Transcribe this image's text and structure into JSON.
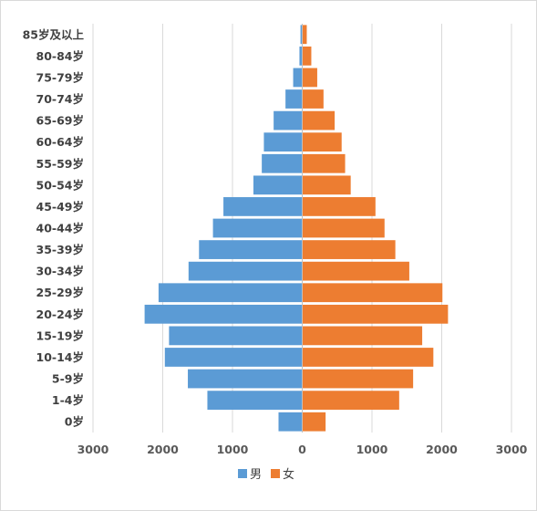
{
  "chart_data": {
    "type": "bar",
    "orientation": "horizontal",
    "subtype": "population-pyramid",
    "categories": [
      "85岁及以上",
      "80-84岁",
      "75-79岁",
      "70-74岁",
      "65-69岁",
      "60-64岁",
      "55-59岁",
      "50-54岁",
      "45-49岁",
      "40-44岁",
      "35-39岁",
      "30-34岁",
      "25-29岁",
      "20-24岁",
      "15-19岁",
      "10-14岁",
      "5-9岁",
      "1-4岁",
      "0岁"
    ],
    "series": [
      {
        "name": "男",
        "color": "#5b9bd5",
        "side": "left",
        "values": [
          25,
          40,
          130,
          240,
          410,
          550,
          580,
          700,
          1130,
          1280,
          1480,
          1630,
          2060,
          2260,
          1910,
          1970,
          1640,
          1360,
          340
        ]
      },
      {
        "name": "女",
        "color": "#ed7d31",
        "side": "right",
        "values": [
          65,
          130,
          215,
          305,
          465,
          565,
          615,
          695,
          1050,
          1180,
          1335,
          1535,
          2010,
          2090,
          1720,
          1880,
          1590,
          1390,
          335
        ]
      }
    ],
    "x_ticks": [
      {
        "value": -3000,
        "label": "3000"
      },
      {
        "value": -2000,
        "label": "2000"
      },
      {
        "value": -1000,
        "label": "1000"
      },
      {
        "value": 0,
        "label": "0"
      },
      {
        "value": 1000,
        "label": "1000"
      },
      {
        "value": 2000,
        "label": "2000"
      },
      {
        "value": 3000,
        "label": "3000"
      }
    ],
    "xlim": [
      -3000,
      3000
    ],
    "grid": "vertical",
    "legend": "bottom-center",
    "title": "",
    "xlabel": "",
    "ylabel": ""
  }
}
